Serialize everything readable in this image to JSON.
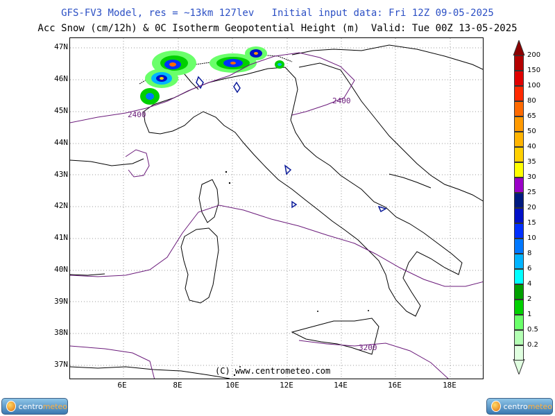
{
  "header": {
    "line1": "GFS-FV3 Model, res = ~13km 127lev   Initial input data: Fri 12Z 09-05-2025",
    "line2": "Acc Snow (cm/12h) & 0C Isotherm Geopotential Height (m)  Valid: Tue 00Z 13-05-2025"
  },
  "axes": {
    "lat_labels": [
      "47N",
      "46N",
      "45N",
      "44N",
      "43N",
      "42N",
      "41N",
      "40N",
      "39N",
      "38N",
      "37N"
    ],
    "lon_labels": [
      "6E",
      "8E",
      "10E",
      "12E",
      "14E",
      "16E",
      "18E"
    ]
  },
  "legend": {
    "labels": [
      "200",
      "150",
      "100",
      "80",
      "65",
      "50",
      "40",
      "35",
      "30",
      "25",
      "20",
      "15",
      "10",
      "8",
      "6",
      "4",
      "2",
      "1",
      "0.5",
      "0.2"
    ],
    "colors": [
      "#8b0000",
      "#b40000",
      "#e00000",
      "#ff2a00",
      "#ff6a00",
      "#ff9a00",
      "#ffb400",
      "#ffd000",
      "#ffff00",
      "#9b00c8",
      "#001a80",
      "#0010c8",
      "#0030ff",
      "#0078ff",
      "#00b4ff",
      "#00ffff",
      "#00a000",
      "#00d000",
      "#6aff6a",
      "#b4ffb4",
      "#e0ffe0"
    ]
  },
  "contours": {
    "label_north_west": "2400",
    "label_north_east": "2400",
    "label_south": "3200"
  },
  "watermark": "(C) www.centrometeo.com",
  "logos": {
    "left_part1": "centro",
    "left_part2": "meteo",
    "right_part1": "centro",
    "right_part2": "meteo"
  },
  "colors": {
    "contour": "#6a1a7a",
    "title_blue": "#2b4fc4"
  }
}
